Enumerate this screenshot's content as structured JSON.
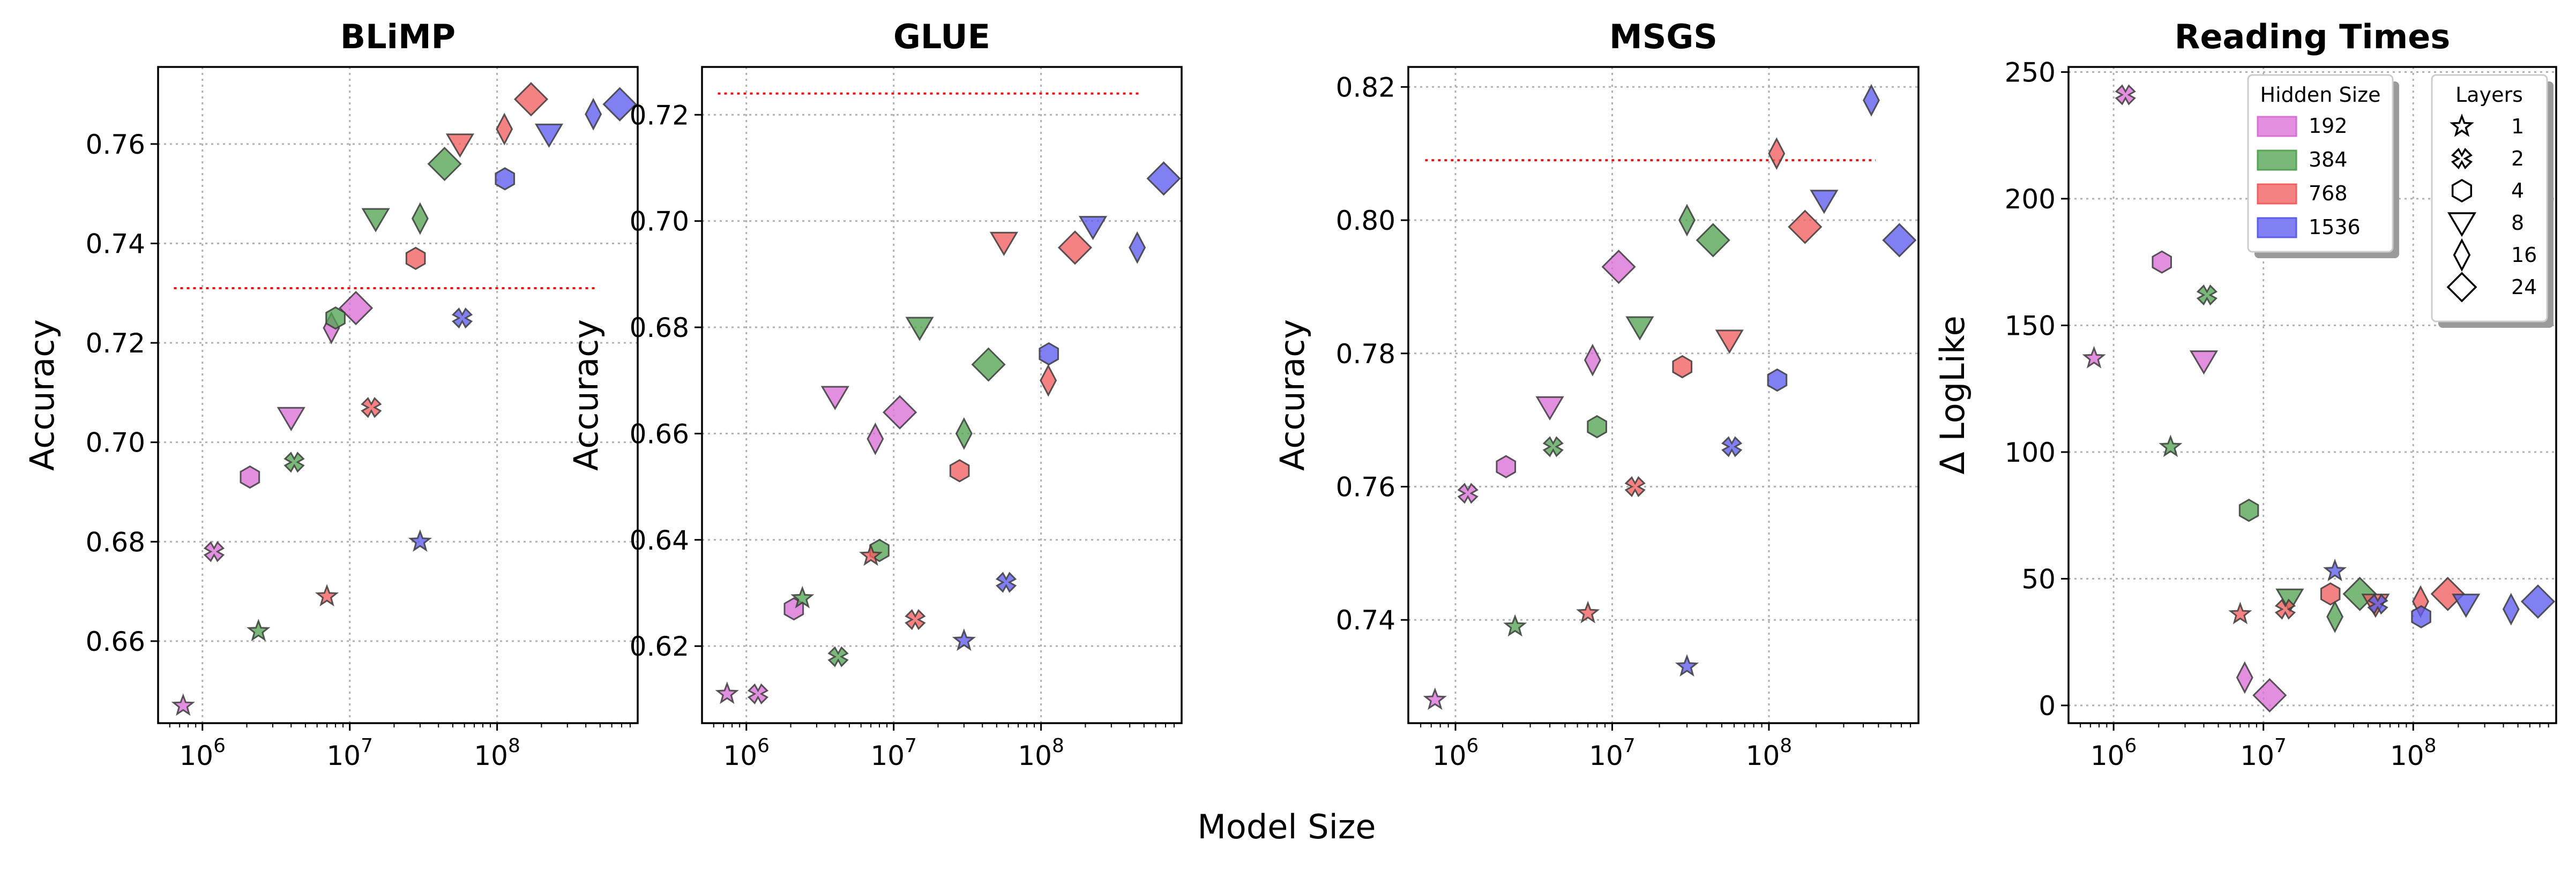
{
  "figure": {
    "xlabel": "Model Size"
  },
  "colors": {
    "192": "#da70d6",
    "384": "#55a455",
    "768": "#f25f5f",
    "1536": "#5c5cee",
    "reference_line": "#ee1111",
    "grid": "#b0b0b0"
  },
  "legends": {
    "hidden": {
      "title": "Hidden Size",
      "items": [
        {
          "label": "192",
          "hidden": "192"
        },
        {
          "label": "384",
          "hidden": "384"
        },
        {
          "label": "768",
          "hidden": "768"
        },
        {
          "label": "1536",
          "hidden": "1536"
        }
      ]
    },
    "layers": {
      "title": "Layers",
      "items": [
        {
          "label": "1",
          "layers": 1
        },
        {
          "label": "2",
          "layers": 2
        },
        {
          "label": "4",
          "layers": 4
        },
        {
          "label": "8",
          "layers": 8
        },
        {
          "label": "16",
          "layers": 16
        },
        {
          "label": "24",
          "layers": 24
        }
      ]
    }
  },
  "marker_shapes": {
    "1": "star",
    "2": "x-cross",
    "4": "hexagon",
    "8": "triangle-down",
    "16": "thin-diamond",
    "24": "diamond"
  },
  "chart_data": [
    {
      "type": "scatter",
      "title": "BLiMP",
      "ylabel": "Accuracy",
      "xscale": "log",
      "xlim": [
        500000,
        900000000
      ],
      "ylim": [
        0.6435,
        0.7755
      ],
      "yticks": [
        "0.66",
        "0.68",
        "0.70",
        "0.72",
        "0.74",
        "0.76"
      ],
      "xticks": [
        {
          "value": 1000000,
          "base": "10",
          "exp": "6"
        },
        {
          "value": 10000000,
          "base": "10",
          "exp": "7"
        },
        {
          "value": 100000000,
          "base": "10",
          "exp": "8"
        }
      ],
      "reference_line": {
        "y": 0.731,
        "x": [
          640000,
          480000000
        ]
      },
      "points": [
        {
          "x": 740000,
          "y": 0.647,
          "layers": 1,
          "hidden": "192"
        },
        {
          "x": 1200000,
          "y": 0.678,
          "layers": 2,
          "hidden": "192"
        },
        {
          "x": 2100000,
          "y": 0.693,
          "layers": 4,
          "hidden": "192"
        },
        {
          "x": 4000000,
          "y": 0.705,
          "layers": 8,
          "hidden": "192"
        },
        {
          "x": 7500000,
          "y": 0.723,
          "layers": 16,
          "hidden": "192"
        },
        {
          "x": 11000000,
          "y": 0.727,
          "layers": 24,
          "hidden": "192"
        },
        {
          "x": 2400000,
          "y": 0.662,
          "layers": 1,
          "hidden": "384"
        },
        {
          "x": 4200000,
          "y": 0.696,
          "layers": 2,
          "hidden": "384"
        },
        {
          "x": 8000000,
          "y": 0.725,
          "layers": 4,
          "hidden": "384"
        },
        {
          "x": 15000000,
          "y": 0.745,
          "layers": 8,
          "hidden": "384"
        },
        {
          "x": 30000000,
          "y": 0.745,
          "layers": 16,
          "hidden": "384"
        },
        {
          "x": 44000000,
          "y": 0.756,
          "layers": 24,
          "hidden": "384"
        },
        {
          "x": 7000000,
          "y": 0.669,
          "layers": 1,
          "hidden": "768"
        },
        {
          "x": 14000000,
          "y": 0.707,
          "layers": 2,
          "hidden": "768"
        },
        {
          "x": 28000000,
          "y": 0.737,
          "layers": 4,
          "hidden": "768"
        },
        {
          "x": 56000000,
          "y": 0.76,
          "layers": 8,
          "hidden": "768"
        },
        {
          "x": 112000000,
          "y": 0.763,
          "layers": 16,
          "hidden": "768"
        },
        {
          "x": 170000000,
          "y": 0.769,
          "layers": 24,
          "hidden": "768"
        },
        {
          "x": 30000000,
          "y": 0.68,
          "layers": 1,
          "hidden": "1536"
        },
        {
          "x": 58000000,
          "y": 0.725,
          "layers": 2,
          "hidden": "1536"
        },
        {
          "x": 113000000,
          "y": 0.753,
          "layers": 4,
          "hidden": "1536"
        },
        {
          "x": 225000000,
          "y": 0.762,
          "layers": 8,
          "hidden": "1536"
        },
        {
          "x": 450000000,
          "y": 0.766,
          "layers": 16,
          "hidden": "1536"
        },
        {
          "x": 680000000,
          "y": 0.768,
          "layers": 24,
          "hidden": "1536"
        }
      ]
    },
    {
      "type": "scatter",
      "title": "GLUE",
      "ylabel": "Accuracy",
      "xscale": "log",
      "xlim": [
        500000,
        900000000
      ],
      "ylim": [
        0.6055,
        0.729
      ],
      "yticks": [
        "0.62",
        "0.64",
        "0.66",
        "0.68",
        "0.70",
        "0.72"
      ],
      "xticks": [
        {
          "value": 1000000,
          "base": "10",
          "exp": "6"
        },
        {
          "value": 10000000,
          "base": "10",
          "exp": "7"
        },
        {
          "value": 100000000,
          "base": "10",
          "exp": "8"
        }
      ],
      "reference_line": {
        "y": 0.724,
        "x": [
          640000,
          480000000
        ]
      },
      "points": [
        {
          "x": 740000,
          "y": 0.611,
          "layers": 1,
          "hidden": "192"
        },
        {
          "x": 1200000,
          "y": 0.611,
          "layers": 2,
          "hidden": "192"
        },
        {
          "x": 2100000,
          "y": 0.627,
          "layers": 4,
          "hidden": "192"
        },
        {
          "x": 4000000,
          "y": 0.667,
          "layers": 8,
          "hidden": "192"
        },
        {
          "x": 7500000,
          "y": 0.659,
          "layers": 16,
          "hidden": "192"
        },
        {
          "x": 11000000,
          "y": 0.664,
          "layers": 24,
          "hidden": "192"
        },
        {
          "x": 2400000,
          "y": 0.629,
          "layers": 1,
          "hidden": "384"
        },
        {
          "x": 4200000,
          "y": 0.618,
          "layers": 2,
          "hidden": "384"
        },
        {
          "x": 8000000,
          "y": 0.638,
          "layers": 4,
          "hidden": "384"
        },
        {
          "x": 15000000,
          "y": 0.68,
          "layers": 8,
          "hidden": "384"
        },
        {
          "x": 30000000,
          "y": 0.66,
          "layers": 16,
          "hidden": "384"
        },
        {
          "x": 44000000,
          "y": 0.673,
          "layers": 24,
          "hidden": "384"
        },
        {
          "x": 7000000,
          "y": 0.637,
          "layers": 1,
          "hidden": "768"
        },
        {
          "x": 14000000,
          "y": 0.625,
          "layers": 2,
          "hidden": "768"
        },
        {
          "x": 28000000,
          "y": 0.653,
          "layers": 4,
          "hidden": "768"
        },
        {
          "x": 56000000,
          "y": 0.696,
          "layers": 8,
          "hidden": "768"
        },
        {
          "x": 112000000,
          "y": 0.67,
          "layers": 16,
          "hidden": "768"
        },
        {
          "x": 170000000,
          "y": 0.695,
          "layers": 24,
          "hidden": "768"
        },
        {
          "x": 30000000,
          "y": 0.621,
          "layers": 1,
          "hidden": "1536"
        },
        {
          "x": 58000000,
          "y": 0.632,
          "layers": 2,
          "hidden": "1536"
        },
        {
          "x": 113000000,
          "y": 0.675,
          "layers": 4,
          "hidden": "1536"
        },
        {
          "x": 225000000,
          "y": 0.699,
          "layers": 8,
          "hidden": "1536"
        },
        {
          "x": 450000000,
          "y": 0.695,
          "layers": 16,
          "hidden": "1536"
        },
        {
          "x": 680000000,
          "y": 0.708,
          "layers": 24,
          "hidden": "1536"
        }
      ]
    },
    {
      "type": "scatter",
      "title": "MSGS",
      "ylabel": "Accuracy",
      "xscale": "log",
      "xlim": [
        500000,
        900000000
      ],
      "ylim": [
        0.7245,
        0.823
      ],
      "yticks": [
        "0.74",
        "0.76",
        "0.78",
        "0.80",
        "0.82"
      ],
      "xticks": [
        {
          "value": 1000000,
          "base": "10",
          "exp": "6"
        },
        {
          "value": 10000000,
          "base": "10",
          "exp": "7"
        },
        {
          "value": 100000000,
          "base": "10",
          "exp": "8"
        }
      ],
      "reference_line": {
        "y": 0.809,
        "x": [
          640000,
          480000000
        ]
      },
      "points": [
        {
          "x": 740000,
          "y": 0.728,
          "layers": 1,
          "hidden": "192"
        },
        {
          "x": 1200000,
          "y": 0.759,
          "layers": 2,
          "hidden": "192"
        },
        {
          "x": 2100000,
          "y": 0.763,
          "layers": 4,
          "hidden": "192"
        },
        {
          "x": 4000000,
          "y": 0.772,
          "layers": 8,
          "hidden": "192"
        },
        {
          "x": 7500000,
          "y": 0.779,
          "layers": 16,
          "hidden": "192"
        },
        {
          "x": 11000000,
          "y": 0.793,
          "layers": 24,
          "hidden": "192"
        },
        {
          "x": 2400000,
          "y": 0.739,
          "layers": 1,
          "hidden": "384"
        },
        {
          "x": 4200000,
          "y": 0.766,
          "layers": 2,
          "hidden": "384"
        },
        {
          "x": 8000000,
          "y": 0.769,
          "layers": 4,
          "hidden": "384"
        },
        {
          "x": 15000000,
          "y": 0.784,
          "layers": 8,
          "hidden": "384"
        },
        {
          "x": 30000000,
          "y": 0.8,
          "layers": 16,
          "hidden": "384"
        },
        {
          "x": 44000000,
          "y": 0.797,
          "layers": 24,
          "hidden": "384"
        },
        {
          "x": 7000000,
          "y": 0.741,
          "layers": 1,
          "hidden": "768"
        },
        {
          "x": 14000000,
          "y": 0.76,
          "layers": 2,
          "hidden": "768"
        },
        {
          "x": 28000000,
          "y": 0.778,
          "layers": 4,
          "hidden": "768"
        },
        {
          "x": 56000000,
          "y": 0.782,
          "layers": 8,
          "hidden": "768"
        },
        {
          "x": 112000000,
          "y": 0.81,
          "layers": 16,
          "hidden": "768"
        },
        {
          "x": 170000000,
          "y": 0.799,
          "layers": 24,
          "hidden": "768"
        },
        {
          "x": 30000000,
          "y": 0.733,
          "layers": 1,
          "hidden": "1536"
        },
        {
          "x": 58000000,
          "y": 0.766,
          "layers": 2,
          "hidden": "1536"
        },
        {
          "x": 113000000,
          "y": 0.776,
          "layers": 4,
          "hidden": "1536"
        },
        {
          "x": 225000000,
          "y": 0.803,
          "layers": 8,
          "hidden": "1536"
        },
        {
          "x": 450000000,
          "y": 0.818,
          "layers": 16,
          "hidden": "1536"
        },
        {
          "x": 680000000,
          "y": 0.797,
          "layers": 24,
          "hidden": "1536"
        }
      ]
    },
    {
      "type": "scatter",
      "title": "Reading Times",
      "ylabel": "Δ LogLike",
      "xscale": "log",
      "xlim": [
        500000,
        900000000
      ],
      "ylim": [
        -7,
        252
      ],
      "yticks": [
        "0",
        "50",
        "100",
        "150",
        "200",
        "250"
      ],
      "xticks": [
        {
          "value": 1000000,
          "base": "10",
          "exp": "6"
        },
        {
          "value": 10000000,
          "base": "10",
          "exp": "7"
        },
        {
          "value": 100000000,
          "base": "10",
          "exp": "8"
        }
      ],
      "points": [
        {
          "x": 740000,
          "y": 137,
          "layers": 1,
          "hidden": "192"
        },
        {
          "x": 1200000,
          "y": 241,
          "layers": 2,
          "hidden": "192"
        },
        {
          "x": 2100000,
          "y": 175,
          "layers": 4,
          "hidden": "192"
        },
        {
          "x": 4000000,
          "y": 136,
          "layers": 8,
          "hidden": "192"
        },
        {
          "x": 7500000,
          "y": 11,
          "layers": 16,
          "hidden": "192"
        },
        {
          "x": 11000000,
          "y": 4,
          "layers": 24,
          "hidden": "192"
        },
        {
          "x": 2400000,
          "y": 102,
          "layers": 1,
          "hidden": "384"
        },
        {
          "x": 4200000,
          "y": 162,
          "layers": 2,
          "hidden": "384"
        },
        {
          "x": 8000000,
          "y": 77,
          "layers": 4,
          "hidden": "384"
        },
        {
          "x": 15000000,
          "y": 42,
          "layers": 8,
          "hidden": "384"
        },
        {
          "x": 30000000,
          "y": 35,
          "layers": 16,
          "hidden": "384"
        },
        {
          "x": 44000000,
          "y": 44,
          "layers": 24,
          "hidden": "384"
        },
        {
          "x": 7000000,
          "y": 36,
          "layers": 1,
          "hidden": "768"
        },
        {
          "x": 14000000,
          "y": 38,
          "layers": 2,
          "hidden": "768"
        },
        {
          "x": 28000000,
          "y": 44,
          "layers": 4,
          "hidden": "768"
        },
        {
          "x": 56000000,
          "y": 40,
          "layers": 8,
          "hidden": "768"
        },
        {
          "x": 112000000,
          "y": 41,
          "layers": 16,
          "hidden": "768"
        },
        {
          "x": 170000000,
          "y": 44,
          "layers": 24,
          "hidden": "768"
        },
        {
          "x": 30000000,
          "y": 53,
          "layers": 1,
          "hidden": "1536"
        },
        {
          "x": 58000000,
          "y": 40,
          "layers": 2,
          "hidden": "1536"
        },
        {
          "x": 113000000,
          "y": 35,
          "layers": 4,
          "hidden": "1536"
        },
        {
          "x": 225000000,
          "y": 40,
          "layers": 8,
          "hidden": "1536"
        },
        {
          "x": 450000000,
          "y": 38,
          "layers": 16,
          "hidden": "1536"
        },
        {
          "x": 680000000,
          "y": 41,
          "layers": 24,
          "hidden": "1536"
        }
      ]
    }
  ]
}
